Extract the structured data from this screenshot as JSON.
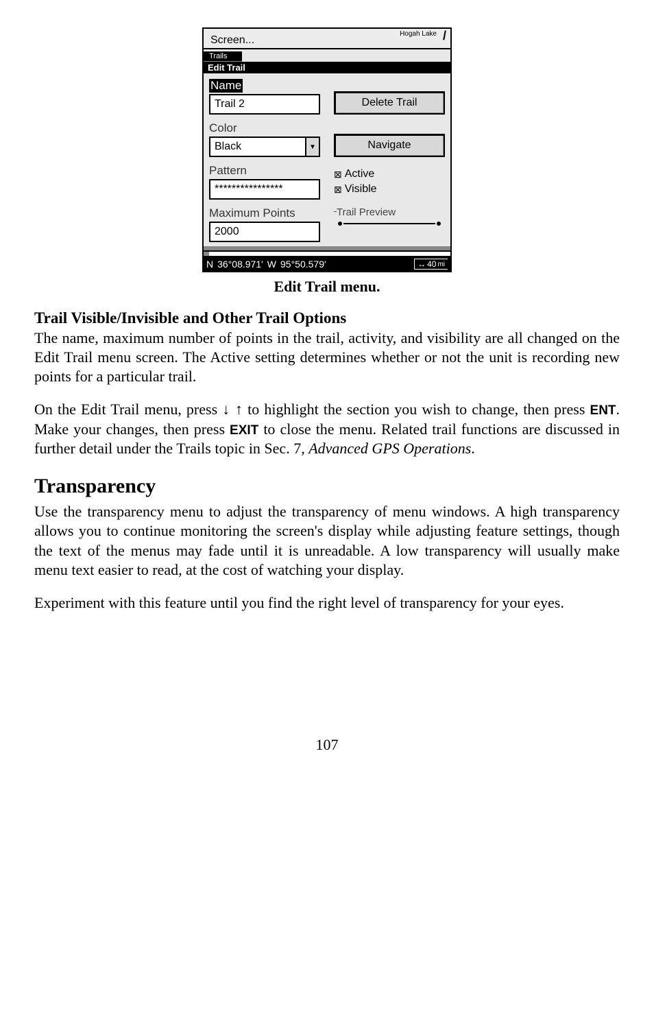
{
  "screen": {
    "top_label": "Screen...",
    "lake_label": "Hogah Lake",
    "trails_tab": "Trails",
    "edit_trail": "Edit Trail",
    "name_label": "Name",
    "name_value": "Trail 2",
    "color_label": "Color",
    "color_value": "Black",
    "pattern_label": "Pattern",
    "pattern_value": "****************",
    "maxpoints_label": "Maximum Points",
    "maxpoints_value": "2000",
    "delete_btn": "Delete Trail",
    "navigate_btn": "Navigate",
    "active_label": "Active",
    "visible_label": "Visible",
    "preview_label": "Trail Preview",
    "status_n": "N",
    "status_lat": "36°08.971'",
    "status_w": "W",
    "status_lon": "95°50.579'",
    "status_arrow": "↔",
    "status_dist": "40",
    "status_unit": "mi"
  },
  "caption": "Edit Trail menu.",
  "h_trail_options": "Trail Visible/Invisible and Other Trail Options",
  "p1": "The name, maximum number of points in the trail, activity, and visibility are all changed on the Edit Trail menu screen. The Active setting determines whether or not the unit is recording new points for a particular trail.",
  "p2_a": "On the Edit Trail menu, press ",
  "p2_arrows": "↓ ↑",
  "p2_b": " to highlight the section you wish to change, then press ",
  "p2_key1": "ENT",
  "p2_c": ". Make your changes, then press ",
  "p2_key2": "EXIT",
  "p2_d": " to close the menu. Related trail functions are discussed in further detail under the Trails topic in Sec. 7, ",
  "p2_em": "Advanced GPS Operations",
  "p2_e": ".",
  "h_transparency": "Transparency",
  "p3": "Use the transparency menu to adjust the transparency of menu windows. A high transparency allows you to continue monitoring the screen's display while adjusting feature settings, though the text of the menus may fade until it is unreadable. A low transparency will usually make menu text easier to read, at the cost of watching your display.",
  "p4": "Experiment with this feature until you find the right level of transparency for your eyes.",
  "pagenum": "107"
}
